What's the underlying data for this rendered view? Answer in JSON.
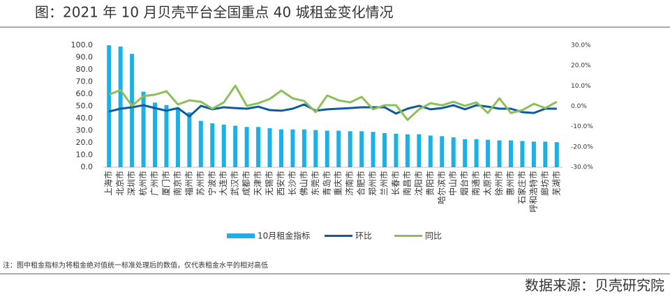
{
  "header": {
    "title": "图：2021 年 10 月贝壳平台全国重点 40 城租金变化情况"
  },
  "chart_data": {
    "type": "bar-line",
    "categories": [
      "上海市",
      "北京市",
      "深圳市",
      "杭州市",
      "广州市",
      "厦门市",
      "南京市",
      "福州市",
      "苏州市",
      "宁波市",
      "大连市",
      "武汉市",
      "成都市",
      "天津市",
      "无锡市",
      "西安市",
      "长沙市",
      "佛山市",
      "东莞市",
      "青岛市",
      "重庆市",
      "济南市",
      "合肥市",
      "郑州市",
      "兰州市",
      "长春市",
      "南昌市",
      "沈阳市",
      "贵阳市",
      "哈尔滨市",
      "中山市",
      "烟台市",
      "南通市",
      "太原市",
      "徐州市",
      "惠州市",
      "石家庄市",
      "呼和浩特市",
      "廊坊市",
      "芜湖市"
    ],
    "series": [
      {
        "name": "10月租金指标",
        "type": "bar",
        "color": "#1ab0e8",
        "values": [
          100,
          99,
          93,
          62,
          53,
          51,
          48,
          45,
          38,
          36,
          35,
          34,
          33,
          33,
          32,
          31,
          31,
          31,
          30.5,
          30,
          30,
          29.5,
          29.5,
          29,
          28,
          27.5,
          27,
          27,
          26,
          25.5,
          24.5,
          23,
          23,
          22.5,
          22,
          22,
          21.5,
          21,
          21,
          20.5
        ]
      },
      {
        "name": "环比",
        "type": "line",
        "axis": "y2",
        "color": "#0f5a9c",
        "values": [
          -2.6,
          -1.2,
          -0.5,
          0.5,
          -0.9,
          -2.2,
          -0.9,
          -5.0,
          0.2,
          -1.5,
          -0.5,
          -0.9,
          -1.2,
          -0.2,
          -1.9,
          -2.2,
          -1.2,
          0.9,
          -2.2,
          -1.5,
          -1.2,
          -0.9,
          -0.5,
          -0.5,
          -0.5,
          -3.6,
          -1.2,
          0.2,
          -1.5,
          -0.9,
          0.5,
          -1.5,
          0.5,
          -0.2,
          -1.2,
          -1.2,
          -2.9,
          -3.3,
          -1.2,
          -1.2
        ]
      },
      {
        "name": "同比",
        "type": "line",
        "axis": "y2",
        "color": "#8cbf5a",
        "values": [
          5.7,
          8.0,
          0.2,
          5.0,
          5.7,
          7.4,
          0.9,
          2.9,
          2.2,
          -1.2,
          1.9,
          10.1,
          0.2,
          1.5,
          3.6,
          7.7,
          3.9,
          2.6,
          -2.9,
          5.3,
          2.9,
          1.9,
          4.6,
          -1.5,
          0.5,
          0.5,
          -6.7,
          -1.5,
          1.5,
          0.5,
          2.2,
          0.2,
          1.9,
          -3.3,
          3.9,
          -3.3,
          -1.9,
          1.2,
          -0.9,
          2.2
        ]
      }
    ],
    "ylim": [
      0,
      100
    ],
    "yticks": [
      {
        "value": 0,
        "label": "0.0"
      },
      {
        "value": 10,
        "label": "10.0"
      },
      {
        "value": 20,
        "label": "20.0"
      },
      {
        "value": 30,
        "label": "30.0"
      },
      {
        "value": 40,
        "label": "40.0"
      },
      {
        "value": 50,
        "label": "50.0"
      },
      {
        "value": 60,
        "label": "60.0"
      },
      {
        "value": 70,
        "label": "70.0"
      },
      {
        "value": 80,
        "label": "80.0"
      },
      {
        "value": 90,
        "label": "90.0"
      },
      {
        "value": 100,
        "label": "100.0"
      }
    ],
    "y2lim": [
      -30,
      30
    ],
    "y2ticks": [
      {
        "value": -30,
        "label": "-30.0%"
      },
      {
        "value": -20,
        "label": "-20.0%"
      },
      {
        "value": -10,
        "label": "-10.0%"
      },
      {
        "value": 0,
        "label": "0.0%"
      },
      {
        "value": 10,
        "label": "10.0%"
      },
      {
        "value": 20,
        "label": "20.0%"
      },
      {
        "value": 30,
        "label": "30.0%"
      }
    ],
    "note": "注：图中租金指标为将租金绝对值统一标准处理后的数值，仅代表租金水平的相对高低"
  },
  "footer": {
    "source": "数据来源：贝壳研究院"
  }
}
